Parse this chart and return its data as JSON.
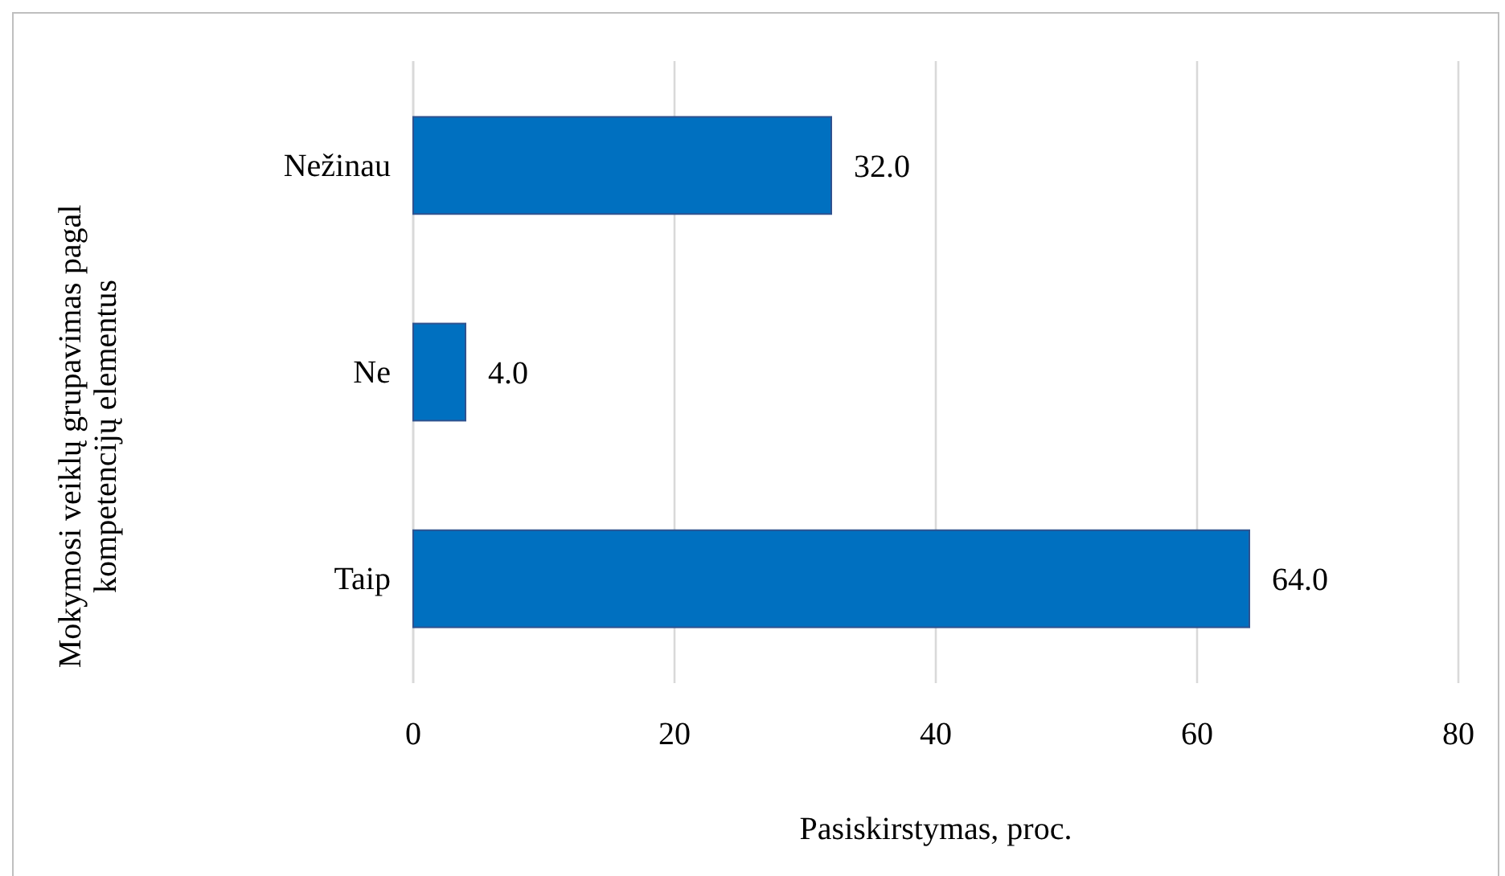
{
  "chart_data": {
    "type": "bar",
    "orientation": "horizontal",
    "categories": [
      "Nežinau",
      "Ne",
      "Taip"
    ],
    "values": [
      32.0,
      4.0,
      64.0
    ],
    "color": "#0070c0",
    "value_labels": [
      "32.0",
      "4.0",
      "64.0"
    ],
    "xlim": [
      0,
      80
    ],
    "xticks": [
      0,
      20,
      40,
      60,
      80
    ],
    "grid": "x",
    "xlabel": "Pasiskirstymas, proc.",
    "ylabel": "Mokymosi veiklų grupavimas pagal kompetencijų elementus"
  }
}
